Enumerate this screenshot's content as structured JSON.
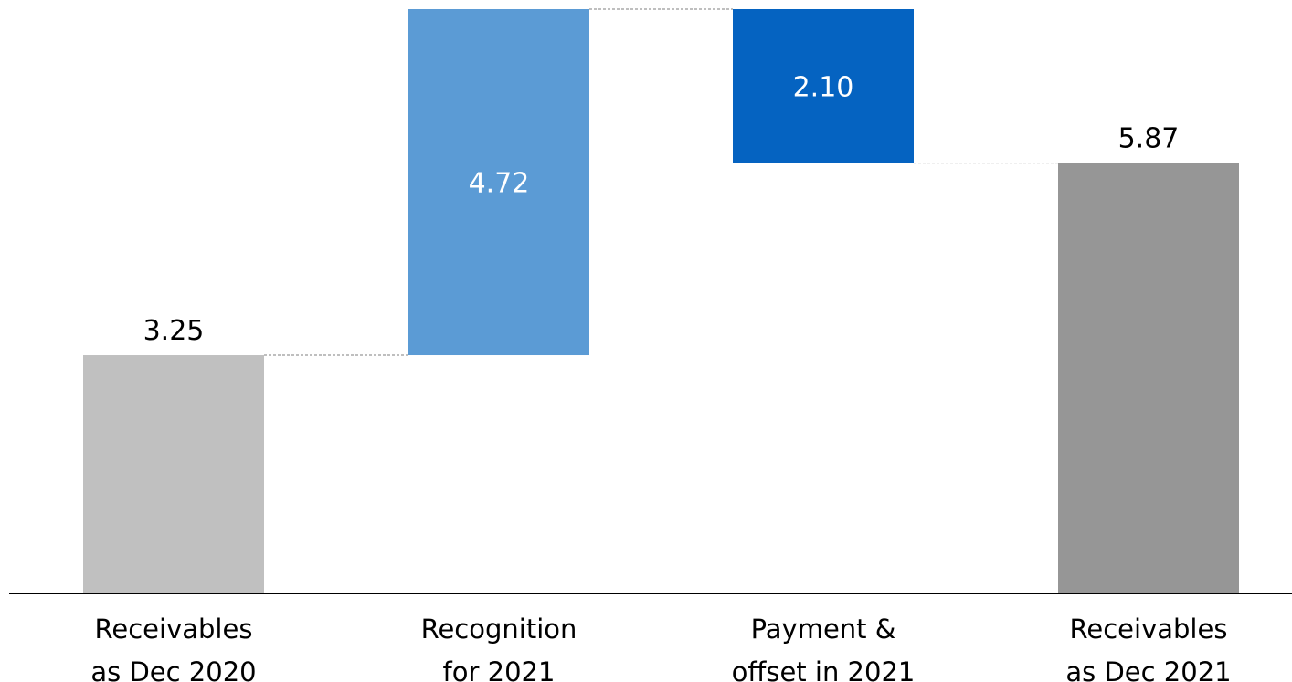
{
  "chart_data": {
    "type": "waterfall",
    "title": "",
    "xlabel": "",
    "ylabel": "",
    "categories": [
      [
        "Receivables",
        "as Dec 2020"
      ],
      [
        "Recognition",
        "for 2021"
      ],
      [
        "Payment &",
        "offset in 2021"
      ],
      [
        "Receivables",
        "as Dec 2021"
      ]
    ],
    "values": [
      3.25,
      4.72,
      -2.1,
      5.87
    ],
    "labels": [
      "3.25",
      "4.72",
      "2.10",
      "5.87"
    ],
    "kinds": [
      "total",
      "increase",
      "decrease",
      "total"
    ],
    "colors": [
      "#c0c0c0",
      "#5b9bd5",
      "#0563c1",
      "#969696"
    ],
    "label_colors": [
      "#000000",
      "#ffffff",
      "#ffffff",
      "#000000"
    ],
    "ylim": [
      0,
      7.97
    ],
    "grid": false,
    "legend": "none"
  }
}
